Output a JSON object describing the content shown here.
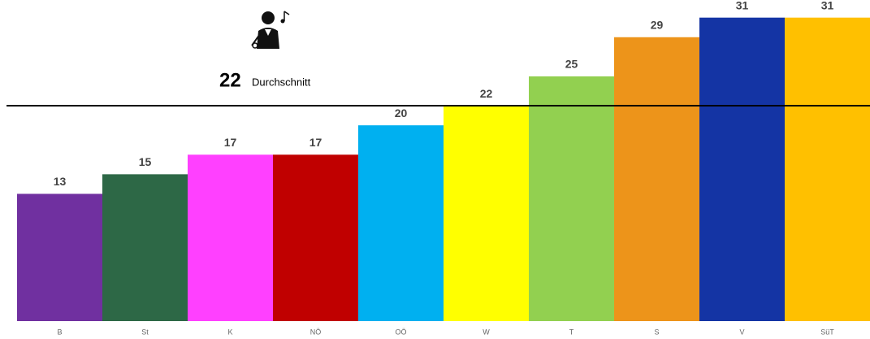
{
  "chart_data": {
    "type": "bar",
    "categories": [
      "B",
      "St",
      "K",
      "NÖ",
      "OÖ",
      "W",
      "T",
      "S",
      "V",
      "SüT"
    ],
    "values": [
      13,
      15,
      17,
      17,
      20,
      22,
      25,
      29,
      31,
      31
    ],
    "colors": [
      "#7030a0",
      "#2d6846",
      "#ff40ff",
      "#c00000",
      "#00b0f0",
      "#ffff00",
      "#92d050",
      "#ed941a",
      "#1434a4",
      "#ffc000"
    ],
    "ylim": [
      0,
      32.8
    ],
    "average": {
      "value": 22,
      "label": "Durchschnitt"
    }
  }
}
